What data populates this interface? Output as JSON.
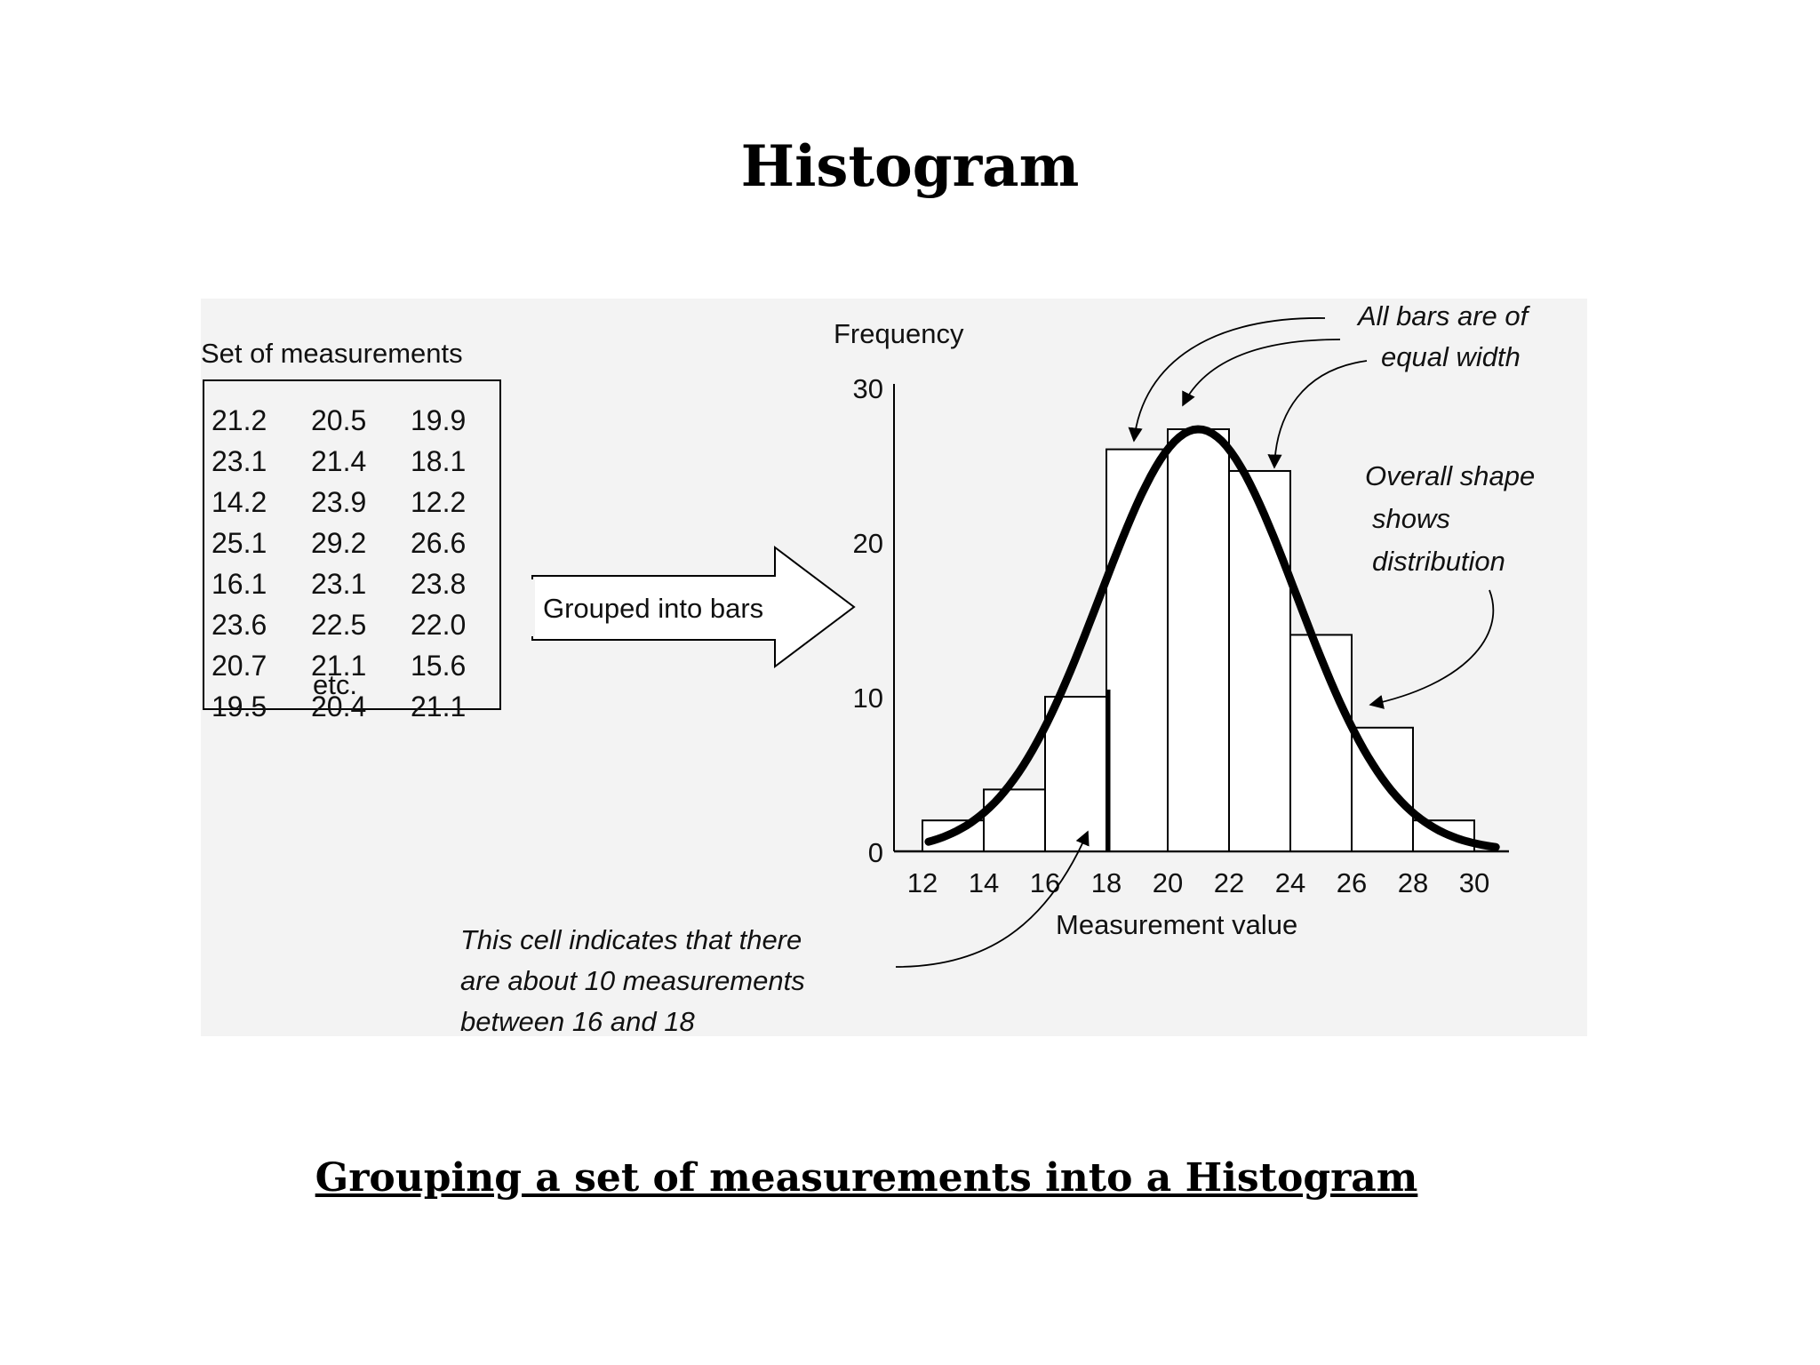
{
  "page": {
    "title": "Histogram",
    "caption": "Grouping a set of measurements into a Histogram"
  },
  "measurements": {
    "label": "Set of measurements",
    "columns": [
      [
        "21.2",
        "23.1",
        "14.2",
        "25.1",
        "16.1",
        "23.6",
        "20.7",
        "19.5"
      ],
      [
        "20.5",
        "21.4",
        "23.9",
        "29.2",
        "23.1",
        "22.5",
        "21.1",
        "20.4"
      ],
      [
        "19.9",
        "18.1",
        "12.2",
        "26.6",
        "23.8",
        "22.0",
        "15.6",
        "21.1"
      ]
    ],
    "etc": "etc."
  },
  "arrow_label": "Grouped into bars",
  "chart_data": {
    "type": "bar",
    "ylabel": "Frequency",
    "xlabel": "Measurement value",
    "xticks": [
      12,
      14,
      16,
      18,
      20,
      22,
      24,
      26,
      28,
      30
    ],
    "yticks": [
      0,
      10,
      20,
      30
    ],
    "ylim": [
      0,
      30
    ],
    "xlim": [
      12,
      31
    ],
    "bins": [
      {
        "from": 12,
        "to": 14,
        "value": 2
      },
      {
        "from": 14,
        "to": 16,
        "value": 4
      },
      {
        "from": 16,
        "to": 18,
        "value": 10
      },
      {
        "from": 18,
        "to": 20,
        "value": 26
      },
      {
        "from": 20,
        "to": 22,
        "value": 27.3
      },
      {
        "from": 22,
        "to": 24,
        "value": 24.6
      },
      {
        "from": 24,
        "to": 26,
        "value": 14
      },
      {
        "from": 26,
        "to": 28,
        "value": 8
      },
      {
        "from": 28,
        "to": 30,
        "value": 2
      }
    ],
    "curve": {
      "mean": 21,
      "sd": 3.2,
      "peak": 27.3
    },
    "annotations": {
      "equal_width": [
        "All bars are of",
        "equal width"
      ],
      "shape": [
        "Overall shape",
        "shows",
        "distribution"
      ],
      "cell": [
        "This cell indicates that there",
        "are about 10 measurements",
        "between 16 and 18"
      ]
    }
  }
}
